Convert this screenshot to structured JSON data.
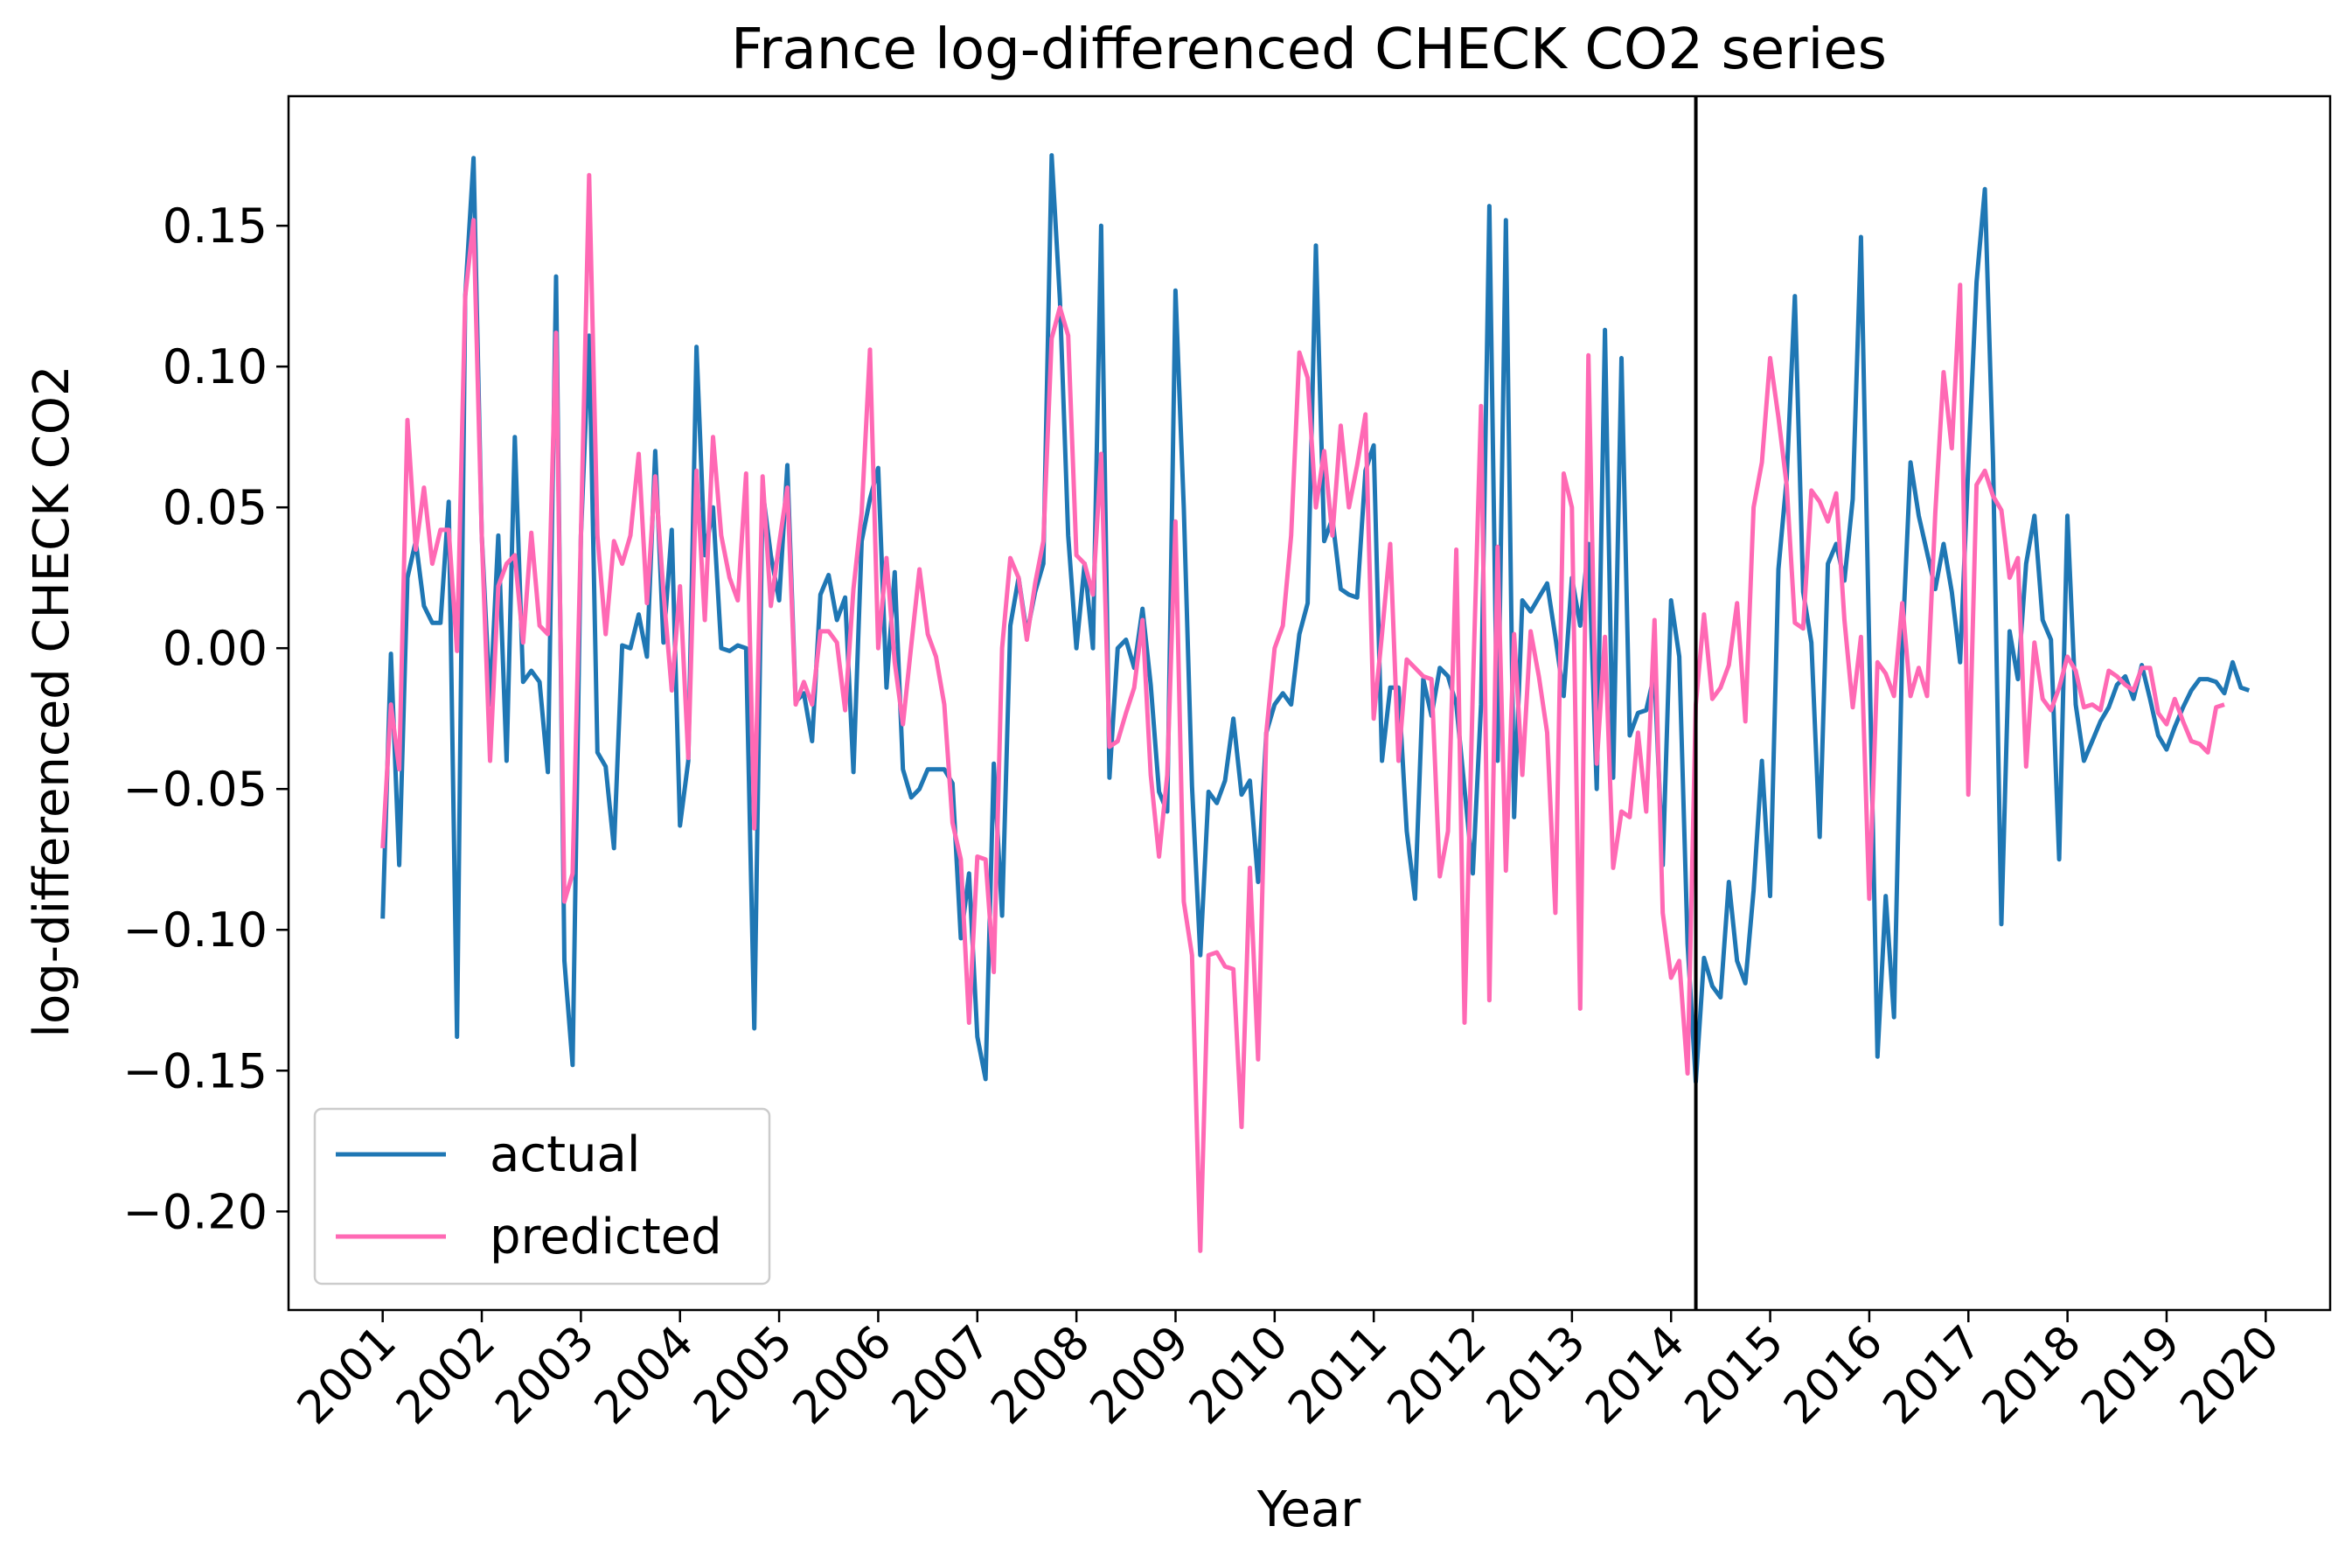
{
  "chart_data": {
    "type": "line",
    "title": "France log-differenced CHECK CO2 series",
    "xlabel": "Year",
    "ylabel": "log-differenced CHECK CO2",
    "xlim": [
      2000.05,
      2020.65
    ],
    "ylim": [
      -0.235,
      0.196
    ],
    "x_ticks": [
      2001,
      2002,
      2003,
      2004,
      2005,
      2006,
      2007,
      2008,
      2009,
      2010,
      2011,
      2012,
      2013,
      2014,
      2015,
      2016,
      2017,
      2018,
      2019,
      2020
    ],
    "x_tick_labels": [
      "2001",
      "2002",
      "2003",
      "2004",
      "2005",
      "2006",
      "2007",
      "2008",
      "2009",
      "2010",
      "2011",
      "2012",
      "2013",
      "2014",
      "2015",
      "2016",
      "2017",
      "2018",
      "2019",
      "2020"
    ],
    "y_ticks": [
      -0.2,
      -0.15,
      -0.1,
      -0.05,
      0.0,
      0.05,
      0.1,
      0.15
    ],
    "y_tick_labels": [
      "−0.20",
      "−0.15",
      "−0.10",
      "−0.05",
      "0.00",
      "0.05",
      "0.10",
      "0.15"
    ],
    "vline": 2014.25,
    "grid": false,
    "legend_position": "lower-left",
    "series": [
      {
        "name": "actual",
        "color": "#1f77b4",
        "x_start": 2001.0,
        "x_step": 0.08333,
        "values": [
          -0.096,
          -0.002,
          -0.077,
          0.025,
          0.038,
          0.015,
          0.009,
          0.009,
          0.052,
          -0.138,
          0.125,
          0.174,
          0.04,
          -0.02,
          0.04,
          -0.04,
          0.075,
          -0.012,
          -0.008,
          -0.012,
          -0.044,
          0.132,
          -0.111,
          -0.148,
          0.04,
          0.111,
          -0.037,
          -0.042,
          -0.071,
          0.001,
          0.0,
          0.012,
          -0.003,
          0.07,
          0.002,
          0.042,
          -0.063,
          -0.04,
          0.107,
          0.033,
          0.05,
          0.0,
          -0.001,
          0.001,
          0.0,
          -0.135,
          0.056,
          0.033,
          0.017,
          0.065,
          -0.019,
          -0.016,
          -0.033,
          0.019,
          0.026,
          0.01,
          0.018,
          -0.044,
          0.038,
          0.053,
          0.064,
          -0.014,
          0.027,
          -0.043,
          -0.053,
          -0.05,
          -0.043,
          -0.043,
          -0.043,
          -0.048,
          -0.103,
          -0.08,
          -0.138,
          -0.153,
          -0.041,
          -0.095,
          0.008,
          0.025,
          0.005,
          0.02,
          0.03,
          0.175,
          0.124,
          0.04,
          0.0,
          0.03,
          0.0,
          0.15,
          -0.046,
          0.0,
          0.003,
          -0.007,
          0.014,
          -0.013,
          -0.051,
          -0.058,
          0.127,
          0.05,
          -0.049,
          -0.109,
          -0.051,
          -0.055,
          -0.047,
          -0.025,
          -0.052,
          -0.047,
          -0.083,
          -0.03,
          -0.02,
          -0.016,
          -0.02,
          0.005,
          0.016,
          0.143,
          0.038,
          0.046,
          0.021,
          0.019,
          0.018,
          0.063,
          0.072,
          -0.04,
          -0.014,
          -0.014,
          -0.065,
          -0.089,
          -0.011,
          -0.024,
          -0.007,
          -0.01,
          -0.02,
          -0.05,
          -0.08,
          -0.02,
          0.157,
          -0.04,
          0.152,
          -0.06,
          0.017,
          0.013,
          0.018,
          0.023,
          0.004,
          -0.017,
          0.025,
          0.008,
          0.037,
          -0.05,
          0.113,
          -0.046,
          0.103,
          -0.031,
          -0.023,
          -0.022,
          -0.009,
          -0.077,
          0.017,
          -0.003,
          -0.105,
          -0.154,
          -0.11,
          -0.12,
          -0.124,
          -0.083,
          -0.111,
          -0.119,
          -0.086,
          -0.04,
          -0.088,
          0.028,
          0.06,
          0.125,
          0.02,
          0.002,
          -0.067,
          0.03,
          0.037,
          0.024,
          0.053,
          0.146,
          0.0,
          -0.145,
          -0.088,
          -0.131,
          0.0,
          0.066,
          0.047,
          0.034,
          0.021,
          0.037,
          0.02,
          -0.005,
          0.065,
          0.13,
          0.163,
          0.066,
          -0.098,
          0.006,
          -0.011,
          0.03,
          0.047,
          0.01,
          0.003,
          -0.075,
          0.047,
          -0.02,
          -0.04,
          -0.033,
          -0.026,
          -0.021,
          -0.013,
          -0.01,
          -0.018,
          -0.006,
          -0.018,
          -0.031,
          -0.036,
          -0.028,
          -0.021,
          -0.015,
          -0.011,
          -0.011,
          -0.012,
          -0.016,
          -0.005,
          -0.014,
          -0.015
        ]
      },
      {
        "name": "predicted",
        "color": "#ff69b4",
        "x_start": 2001.0,
        "x_step": 0.08333,
        "values": [
          -0.071,
          -0.02,
          -0.043,
          0.081,
          0.035,
          0.057,
          0.03,
          0.042,
          0.042,
          -0.001,
          0.125,
          0.152,
          0.04,
          -0.04,
          0.022,
          0.03,
          0.033,
          0.002,
          0.041,
          0.008,
          0.005,
          0.112,
          -0.09,
          -0.08,
          0.04,
          0.168,
          0.04,
          0.005,
          0.038,
          0.03,
          0.04,
          0.069,
          0.016,
          0.061,
          0.02,
          -0.015,
          0.022,
          -0.039,
          0.063,
          0.01,
          0.075,
          0.04,
          0.025,
          0.017,
          0.062,
          -0.064,
          0.061,
          0.015,
          0.037,
          0.057,
          -0.02,
          -0.012,
          -0.02,
          0.006,
          0.006,
          0.002,
          -0.022,
          0.021,
          0.048,
          0.106,
          0.0,
          0.032,
          -0.005,
          -0.027,
          0.001,
          0.028,
          0.005,
          -0.003,
          -0.02,
          -0.062,
          -0.075,
          -0.133,
          -0.074,
          -0.075,
          -0.115,
          0.0,
          0.032,
          0.025,
          0.003,
          0.023,
          0.038,
          0.11,
          0.121,
          0.111,
          0.033,
          0.03,
          0.019,
          0.069,
          -0.035,
          -0.033,
          -0.023,
          -0.014,
          0.01,
          -0.045,
          -0.074,
          -0.045,
          0.045,
          -0.09,
          -0.109,
          -0.214,
          -0.109,
          -0.108,
          -0.113,
          -0.114,
          -0.17,
          -0.078,
          -0.146,
          -0.03,
          0.0,
          0.008,
          0.04,
          0.105,
          0.096,
          0.05,
          0.07,
          0.04,
          0.079,
          0.05,
          0.065,
          0.083,
          -0.025,
          0.005,
          0.037,
          -0.04,
          -0.004,
          -0.007,
          -0.01,
          -0.011,
          -0.081,
          -0.065,
          0.035,
          -0.133,
          -0.015,
          0.086,
          -0.125,
          0.036,
          -0.079,
          0.005,
          -0.045,
          0.006,
          -0.01,
          -0.03,
          -0.094,
          0.062,
          0.05,
          -0.128,
          0.104,
          -0.041,
          0.004,
          -0.078,
          -0.058,
          -0.06,
          -0.03,
          -0.058,
          0.01,
          -0.094,
          -0.117,
          -0.111,
          -0.151,
          -0.02,
          0.012,
          -0.018,
          -0.014,
          -0.006,
          0.016,
          -0.026,
          0.05,
          0.066,
          0.103,
          0.082,
          0.058,
          0.009,
          0.007,
          0.056,
          0.052,
          0.045,
          0.055,
          0.01,
          -0.021,
          0.004,
          -0.089,
          -0.005,
          -0.009,
          -0.017,
          0.016,
          -0.017,
          -0.007,
          -0.017,
          0.048,
          0.098,
          0.071,
          0.129,
          -0.052,
          0.058,
          0.063,
          0.054,
          0.049,
          0.025,
          0.032,
          -0.042,
          0.002,
          -0.018,
          -0.022,
          -0.014,
          -0.003,
          -0.008,
          -0.021,
          -0.02,
          -0.022,
          -0.008,
          -0.01,
          -0.013,
          -0.015,
          -0.007,
          -0.007,
          -0.023,
          -0.027,
          -0.018,
          -0.026,
          -0.033,
          -0.034,
          -0.037,
          -0.021,
          -0.02
        ]
      }
    ]
  }
}
